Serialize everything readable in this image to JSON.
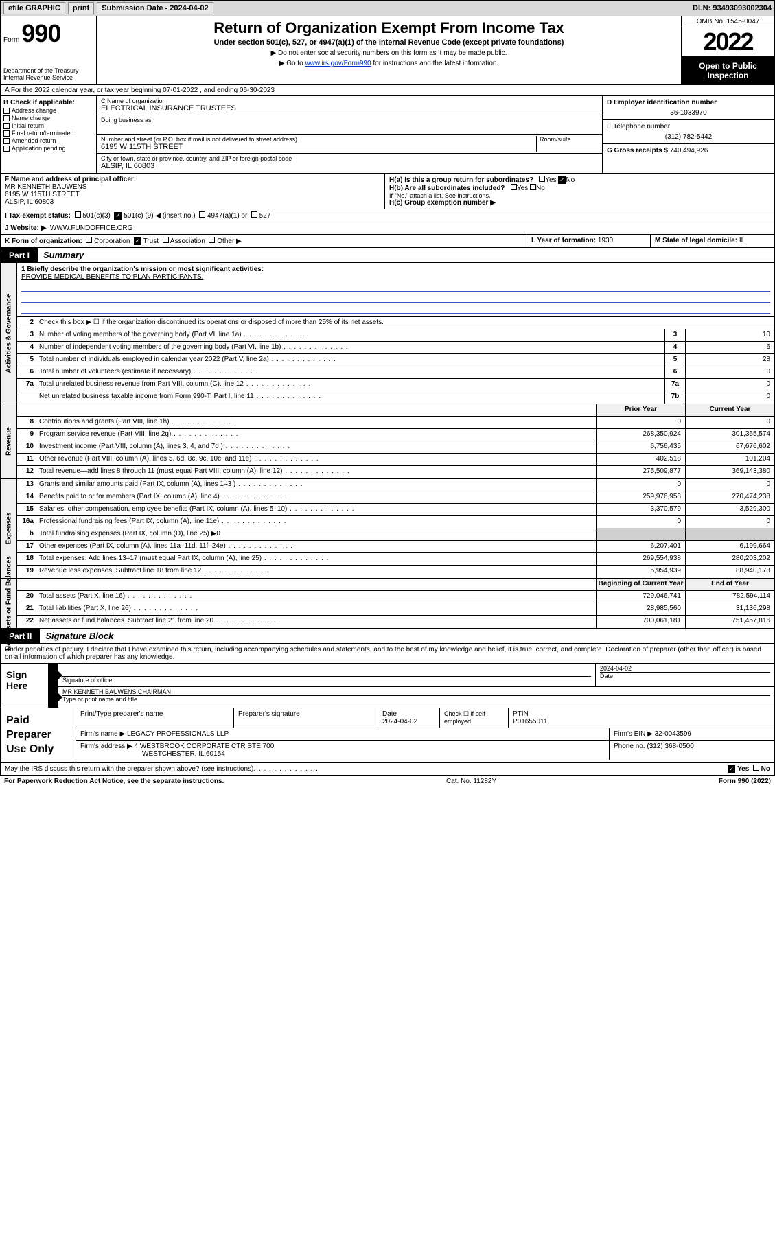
{
  "top_bar": {
    "efile": "efile GRAPHIC",
    "print": "print",
    "sub_date_label": "Submission Date - ",
    "sub_date": "2024-04-02",
    "dln_label": "DLN: ",
    "dln": "93493093002304"
  },
  "header": {
    "form_prefix": "Form",
    "form_no": "990",
    "dept": "Department of the Treasury",
    "irs": "Internal Revenue Service",
    "title": "Return of Organization Exempt From Income Tax",
    "sub1": "Under section 501(c), 527, or 4947(a)(1) of the Internal Revenue Code (except private foundations)",
    "sub2": "▶ Do not enter social security numbers on this form as it may be made public.",
    "sub3_pre": "▶ Go to ",
    "sub3_link": "www.irs.gov/Form990",
    "sub3_post": " for instructions and the latest information.",
    "omb": "OMB No. 1545-0047",
    "year": "2022",
    "open": "Open to Public Inspection"
  },
  "row_a": "A For the 2022 calendar year, or tax year beginning 07-01-2022   , and ending 06-30-2023",
  "col_b": {
    "head": "B Check if applicable:",
    "items": [
      "Address change",
      "Name change",
      "Initial return",
      "Final return/terminated",
      "Amended return",
      "Application pending"
    ]
  },
  "col_c": {
    "name_label": "C Name of organization",
    "name": "ELECTRICAL INSURANCE TRUSTEES",
    "dba_label": "Doing business as",
    "dba": "",
    "addr_label": "Number and street (or P.O. box if mail is not delivered to street address)",
    "room_label": "Room/suite",
    "addr": "6195 W 115TH STREET",
    "city_label": "City or town, state or province, country, and ZIP or foreign postal code",
    "city": "ALSIP, IL  60803"
  },
  "col_d": {
    "ein_label": "D Employer identification number",
    "ein": "36-1033970",
    "phone_label": "E Telephone number",
    "phone": "(312) 782-5442",
    "gross_label": "G Gross receipts $ ",
    "gross": "740,494,926"
  },
  "section_f": {
    "label": "F Name and address of principal officer:",
    "name": "MR KENNETH BAUWENS",
    "addr1": "6195 W 115TH STREET",
    "addr2": "ALSIP, IL  60803"
  },
  "section_h": {
    "ha": "H(a)  Is this a group return for subordinates?",
    "ha_no": "No",
    "hb": "H(b)  Are all subordinates included?",
    "hb_note": "If \"No,\" attach a list. See instructions.",
    "hc": "H(c)  Group exemption number ▶"
  },
  "section_i": {
    "label": "I    Tax-exempt status:",
    "opt1": "501(c)(3)",
    "opt2_pre": "501(c) (",
    "opt2_num": "9",
    "opt2_post": ") ◀ (insert no.)",
    "opt3": "4947(a)(1) or",
    "opt4": "527"
  },
  "section_j": {
    "label": "J   Website: ▶",
    "val": "WWW.FUNDOFFICE.ORG"
  },
  "section_k": {
    "label": "K Form of organization:",
    "opts": [
      "Corporation",
      "Trust",
      "Association",
      "Other ▶"
    ]
  },
  "section_l": {
    "label": "L Year of formation: ",
    "val": "1930"
  },
  "section_m": {
    "label": "M State of legal domicile: ",
    "val": "IL"
  },
  "part1": {
    "tab": "Part I",
    "title": "Summary"
  },
  "mission": {
    "q": "1   Briefly describe the organization's mission or most significant activities:",
    "text": "PROVIDE MEDICAL BENEFITS TO PLAN PARTICIPANTS."
  },
  "governance": {
    "label": "Activities & Governance",
    "line2": "Check this box ▶ ☐  if the organization discontinued its operations or disposed of more than 25% of its net assets.",
    "rows": [
      {
        "n": "3",
        "d": "Number of voting members of the governing body (Part VI, line 1a)",
        "b": "3",
        "v": "10"
      },
      {
        "n": "4",
        "d": "Number of independent voting members of the governing body (Part VI, line 1b)",
        "b": "4",
        "v": "6"
      },
      {
        "n": "5",
        "d": "Total number of individuals employed in calendar year 2022 (Part V, line 2a)",
        "b": "5",
        "v": "28"
      },
      {
        "n": "6",
        "d": "Total number of volunteers (estimate if necessary)",
        "b": "6",
        "v": "0"
      },
      {
        "n": "7a",
        "d": "Total unrelated business revenue from Part VIII, column (C), line 12",
        "b": "7a",
        "v": "0"
      },
      {
        "n": "",
        "d": "Net unrelated business taxable income from Form 990-T, Part I, line 11",
        "b": "7b",
        "v": "0"
      }
    ]
  },
  "revenue": {
    "label": "Revenue",
    "head_prior": "Prior Year",
    "head_curr": "Current Year",
    "rows": [
      {
        "n": "8",
        "d": "Contributions and grants (Part VIII, line 1h)",
        "p": "0",
        "c": "0"
      },
      {
        "n": "9",
        "d": "Program service revenue (Part VIII, line 2g)",
        "p": "268,350,924",
        "c": "301,365,574"
      },
      {
        "n": "10",
        "d": "Investment income (Part VIII, column (A), lines 3, 4, and 7d )",
        "p": "6,756,435",
        "c": "67,676,602"
      },
      {
        "n": "11",
        "d": "Other revenue (Part VIII, column (A), lines 5, 6d, 8c, 9c, 10c, and 11e)",
        "p": "402,518",
        "c": "101,204"
      },
      {
        "n": "12",
        "d": "Total revenue—add lines 8 through 11 (must equal Part VIII, column (A), line 12)",
        "p": "275,509,877",
        "c": "369,143,380"
      }
    ]
  },
  "expenses": {
    "label": "Expenses",
    "rows": [
      {
        "n": "13",
        "d": "Grants and similar amounts paid (Part IX, column (A), lines 1–3 )",
        "p": "0",
        "c": "0"
      },
      {
        "n": "14",
        "d": "Benefits paid to or for members (Part IX, column (A), line 4)",
        "p": "259,976,958",
        "c": "270,474,238"
      },
      {
        "n": "15",
        "d": "Salaries, other compensation, employee benefits (Part IX, column (A), lines 5–10)",
        "p": "3,370,579",
        "c": "3,529,300"
      },
      {
        "n": "16a",
        "d": "Professional fundraising fees (Part IX, column (A), line 11e)",
        "p": "0",
        "c": "0"
      },
      {
        "n": "b",
        "d": "Total fundraising expenses (Part IX, column (D), line 25) ▶0",
        "p": "",
        "c": "",
        "shaded": true
      },
      {
        "n": "17",
        "d": "Other expenses (Part IX, column (A), lines 11a–11d, 11f–24e)",
        "p": "6,207,401",
        "c": "6,199,664"
      },
      {
        "n": "18",
        "d": "Total expenses. Add lines 13–17 (must equal Part IX, column (A), line 25)",
        "p": "269,554,938",
        "c": "280,203,202"
      },
      {
        "n": "19",
        "d": "Revenue less expenses. Subtract line 18 from line 12",
        "p": "5,954,939",
        "c": "88,940,178"
      }
    ]
  },
  "netassets": {
    "label": "Net Assets or Fund Balances",
    "head_prior": "Beginning of Current Year",
    "head_curr": "End of Year",
    "rows": [
      {
        "n": "20",
        "d": "Total assets (Part X, line 16)",
        "p": "729,046,741",
        "c": "782,594,114"
      },
      {
        "n": "21",
        "d": "Total liabilities (Part X, line 26)",
        "p": "28,985,560",
        "c": "31,136,298"
      },
      {
        "n": "22",
        "d": "Net assets or fund balances. Subtract line 21 from line 20",
        "p": "700,061,181",
        "c": "751,457,816"
      }
    ]
  },
  "part2": {
    "tab": "Part II",
    "title": "Signature Block"
  },
  "declare": "Under penalties of perjury, I declare that I have examined this return, including accompanying schedules and statements, and to the best of my knowledge and belief, it is true, correct, and complete. Declaration of preparer (other than officer) is based on all information of which preparer has any knowledge.",
  "sign": {
    "left": "Sign Here",
    "sig_label": "Signature of officer",
    "date_label": "Date",
    "date": "2024-04-02",
    "name": "MR KENNETH BAUWENS  CHAIRMAN",
    "name_label": "Type or print name and title"
  },
  "preparer": {
    "left": "Paid Preparer Use Only",
    "h1": "Print/Type preparer's name",
    "h2": "Preparer's signature",
    "h3": "Date",
    "h3v": "2024-04-02",
    "h4": "Check ☐ if self-employed",
    "h5": "PTIN",
    "h5v": "P01655011",
    "firm_label": "Firm's name    ▶ ",
    "firm": "LEGACY PROFESSIONALS LLP",
    "ein_label": "Firm's EIN ▶ ",
    "ein": "32-0043599",
    "addr_label": "Firm's address ▶ ",
    "addr1": "4 WESTBROOK CORPORATE CTR STE 700",
    "addr2": "WESTCHESTER, IL  60154",
    "phone_label": "Phone no. ",
    "phone": "(312) 368-0500"
  },
  "footer": {
    "discuss": "May the IRS discuss this return with the preparer shown above? (see instructions)",
    "yes": "Yes",
    "no": "No",
    "paperwork": "For Paperwork Reduction Act Notice, see the separate instructions.",
    "cat": "Cat. No. 11282Y",
    "form": "Form 990 (2022)"
  }
}
